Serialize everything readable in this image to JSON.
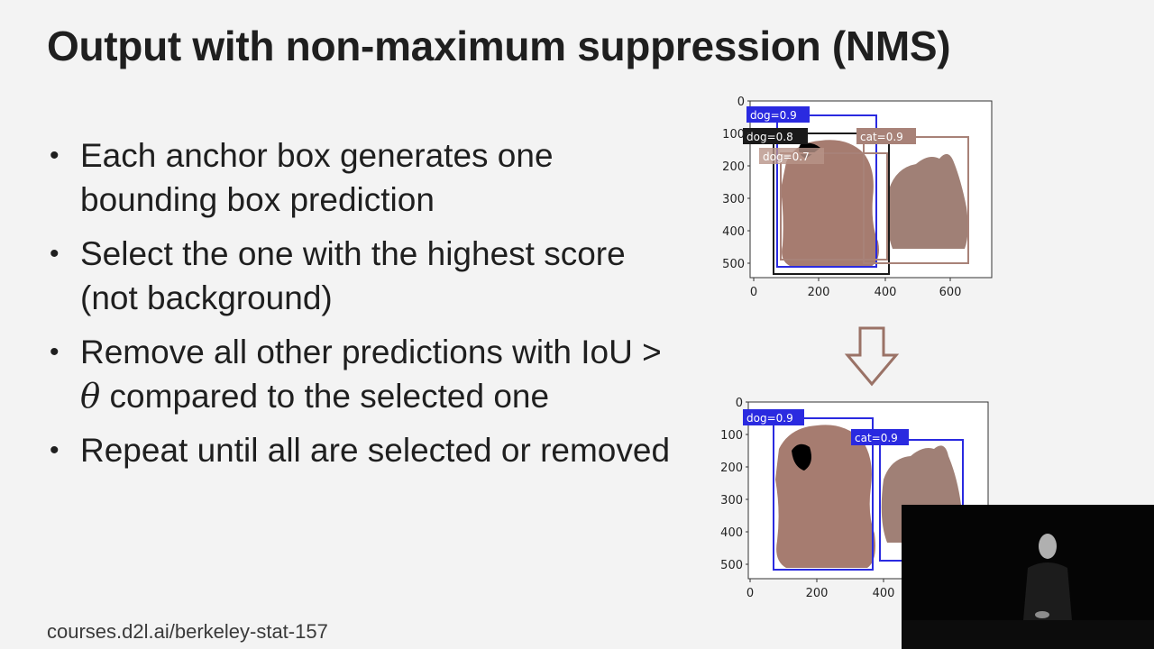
{
  "slide": {
    "title": "Output with non-maximum suppression (NMS)",
    "bullets": [
      {
        "text": "Each anchor box generates one bounding box prediction"
      },
      {
        "pre": "Remove all other predictions with IoU > ",
        "symbol": "θ",
        "post": " compared to the selected one"
      }
    ],
    "bullet_select": "Select the one with the highest score (not background)",
    "bullet_repeat": "Repeat until all are selected or removed",
    "footer": "courses.d2l.ai/berkeley-stat-157"
  },
  "top_plot": {
    "y_ticks": [
      "0",
      "100",
      "200",
      "300",
      "400",
      "500"
    ],
    "x_ticks": [
      "0",
      "200",
      "400",
      "600"
    ],
    "labels": {
      "dog09": "dog=0.9",
      "dog08": "dog=0.8",
      "cat09": "cat=0.9",
      "dog07": "dog=0.7"
    }
  },
  "bottom_plot": {
    "y_ticks": [
      "0",
      "100",
      "200",
      "300",
      "400",
      "500"
    ],
    "x_ticks": [
      "0",
      "200",
      "400"
    ],
    "labels": {
      "dog09": "dog=0.9",
      "cat09": "cat=0.9"
    }
  },
  "colors": {
    "blue_box": "#2a2ae0",
    "black_box": "#1a1a1a",
    "brown_box": "#a88278",
    "animal": "#a67c70",
    "arrow": "#9a7266"
  }
}
